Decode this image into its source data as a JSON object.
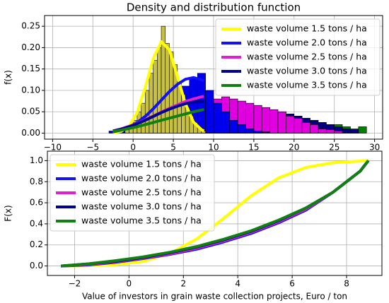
{
  "chart_data": [
    {
      "type": "histogram",
      "title": "Density and distribution function",
      "ylabel": "f(x)",
      "xlim": [
        -11,
        31
      ],
      "ylim": [
        -0.014,
        0.275
      ],
      "xticks": [
        {
          "value": -10,
          "label": "−10"
        },
        {
          "value": -5,
          "label": "−5"
        },
        0,
        5,
        10,
        15,
        20,
        25,
        30
      ],
      "yticks": [
        {
          "value": 0,
          "label": "0.00"
        },
        0.05,
        {
          "value": 0.1,
          "label": "0.10"
        },
        0.15,
        {
          "value": 0.2,
          "label": "0.20"
        },
        0.25
      ],
      "grid": true,
      "legend": "upper right",
      "histograms": [
        {
          "color": "#008000",
          "bins": [
            8,
            9,
            10,
            11,
            12,
            13,
            14,
            15,
            16,
            17,
            18,
            19,
            20,
            21,
            22,
            23,
            24,
            25,
            26,
            27,
            28,
            29
          ],
          "values": [
            0.05,
            0.055,
            0.06,
            0.06,
            0.055,
            0.055,
            0.05,
            0.05,
            0.045,
            0.045,
            0.04,
            0.04,
            0.035,
            0.03,
            0.03,
            0.025,
            0.02,
            0.02,
            0.015,
            0.01,
            0.015
          ]
        },
        {
          "color": "#000080",
          "bins": [
            0,
            1,
            2,
            3,
            4,
            5,
            6,
            7,
            8,
            9,
            10,
            11,
            12,
            13,
            14,
            15,
            16,
            17,
            18,
            19,
            20,
            21,
            22,
            23,
            24,
            25,
            26,
            27,
            28
          ],
          "values": [
            0.01,
            0.015,
            0.02,
            0.025,
            0.03,
            0.035,
            0.045,
            0.05,
            0.06,
            0.065,
            0.07,
            0.075,
            0.07,
            0.07,
            0.065,
            0.06,
            0.055,
            0.05,
            0.05,
            0.045,
            0.04,
            0.035,
            0.03,
            0.025,
            0.02,
            0.015,
            0.01,
            0.008
          ]
        },
        {
          "color": "#e000e0",
          "bins": [
            0,
            1,
            2,
            3,
            4,
            5,
            6,
            7,
            8,
            9,
            10,
            11,
            12,
            13,
            14,
            15,
            16,
            17,
            18,
            19,
            20,
            21,
            22,
            23,
            24,
            25,
            26
          ],
          "values": [
            0.01,
            0.015,
            0.02,
            0.03,
            0.035,
            0.045,
            0.05,
            0.06,
            0.065,
            0.07,
            0.08,
            0.085,
            0.08,
            0.075,
            0.07,
            0.065,
            0.06,
            0.055,
            0.05,
            0.04,
            0.035,
            0.025,
            0.02,
            0.01,
            0.008,
            0.005
          ]
        },
        {
          "color": "#0000ee",
          "bins": [
            -3,
            -2,
            -1,
            0,
            1,
            2,
            3,
            4,
            5,
            6,
            7,
            8,
            9,
            10,
            11,
            12,
            13,
            14,
            15,
            16,
            17
          ],
          "values": [
            0.005,
            0.01,
            0.015,
            0.025,
            0.03,
            0.045,
            0.06,
            0.08,
            0.095,
            0.11,
            0.13,
            0.14,
            0.1,
            0.07,
            0.05,
            0.03,
            0.02,
            0.01,
            0.005,
            0.003
          ]
        },
        {
          "color": "#c8c040",
          "bins": [
            -1,
            -0.5,
            0,
            0.5,
            1,
            1.5,
            2,
            2.5,
            3,
            3.5,
            4,
            4.5,
            5,
            5.5,
            6,
            6.5,
            7,
            7.5,
            8,
            8.5,
            9
          ],
          "values": [
            0.01,
            0.015,
            0.03,
            0.05,
            0.07,
            0.1,
            0.14,
            0.17,
            0.2,
            0.25,
            0.21,
            0.19,
            0.16,
            0.12,
            0.09,
            0.06,
            0.04,
            0.025,
            0.015,
            0.005
          ]
        }
      ],
      "x": [
        -2.5,
        -1.5,
        -0.5,
        0.5,
        1.5,
        2.5,
        3.5,
        4.5,
        5.5,
        6.5,
        7.5,
        8.5,
        8.8
      ],
      "series": [
        {
          "name": "waste volume 1.5 tons / ha",
          "color": "#ffff00",
          "values": [
            0.0008,
            0.0041,
            0.016,
            0.048,
            0.106,
            0.174,
            0.214,
            0.195,
            0.133,
            0.069,
            0.026,
            0.008,
            0.005
          ]
        },
        {
          "name": "waste volume 2.0 tons / ha",
          "color": "#1010ff",
          "values": [
            0.003,
            0.007,
            0.014,
            0.025,
            0.039,
            0.057,
            0.077,
            0.097,
            0.114,
            0.126,
            0.13,
            0.125,
            0.122
          ]
        },
        {
          "name": "waste volume 2.5 tons / ha",
          "color": "#e020d0",
          "values": [
            0.005,
            0.01,
            0.016,
            0.023,
            0.031,
            0.04,
            0.049,
            0.058,
            0.066,
            0.074,
            0.08,
            0.085,
            0.086
          ]
        },
        {
          "name": "waste volume 3.0 tons / ha",
          "color": "#000090",
          "values": [
            0.005,
            0.009,
            0.015,
            0.022,
            0.03,
            0.039,
            0.048,
            0.056,
            0.063,
            0.069,
            0.073,
            0.074,
            0.073
          ]
        },
        {
          "name": "waste volume 3.5 tons / ha",
          "color": "#108010",
          "values": [
            0.004,
            0.007,
            0.011,
            0.015,
            0.02,
            0.025,
            0.03,
            0.035,
            0.04,
            0.045,
            0.05,
            0.054,
            0.055
          ]
        }
      ]
    },
    {
      "type": "line",
      "ylabel": "F(x)",
      "xlabel": "Value of investors in grain waste collection projects, Euro / ton",
      "xlim": [
        -3,
        9.3
      ],
      "ylim": [
        -0.09,
        1.09
      ],
      "xticks": [
        {
          "value": -2,
          "label": "−2"
        },
        0,
        2,
        4,
        6,
        8
      ],
      "yticks": [
        {
          "value": 0,
          "label": "0.0"
        },
        0.2,
        0.4,
        0.6,
        0.8,
        {
          "value": 1,
          "label": "1.0"
        }
      ],
      "grid": true,
      "legend": "upper left",
      "x": [
        -2.5,
        -1.5,
        -0.5,
        0.5,
        1.5,
        2.5,
        3.5,
        4.5,
        5.5,
        6.5,
        7.5,
        8.5,
        8.8
      ],
      "series": [
        {
          "name": "waste volume 1.5 tons / ha",
          "color": "#ffff00",
          "values": [
            0.0004,
            0.0025,
            0.012,
            0.042,
            0.117,
            0.258,
            0.456,
            0.667,
            0.835,
            0.935,
            0.98,
            0.995,
            1
          ]
        },
        {
          "name": "waste volume 2.0 tons / ha",
          "color": "#1010ff",
          "values": [
            0,
            0.01,
            0.035,
            0.07,
            0.11,
            0.16,
            0.23,
            0.31,
            0.41,
            0.53,
            0.7,
            0.9,
            1
          ]
        },
        {
          "name": "waste volume 2.5 tons / ha",
          "color": "#e020d0",
          "values": [
            0,
            0.015,
            0.04,
            0.075,
            0.115,
            0.17,
            0.24,
            0.32,
            0.42,
            0.54,
            0.7,
            0.9,
            1
          ]
        },
        {
          "name": "waste volume 3.0 tons / ha",
          "color": "#000090",
          "values": [
            0,
            0.02,
            0.045,
            0.08,
            0.125,
            0.18,
            0.25,
            0.33,
            0.43,
            0.55,
            0.7,
            0.9,
            1
          ]
        },
        {
          "name": "waste volume 3.5 tons / ha",
          "color": "#108010",
          "values": [
            0,
            0.02,
            0.05,
            0.085,
            0.13,
            0.185,
            0.255,
            0.335,
            0.435,
            0.55,
            0.7,
            0.9,
            1
          ]
        }
      ]
    }
  ]
}
